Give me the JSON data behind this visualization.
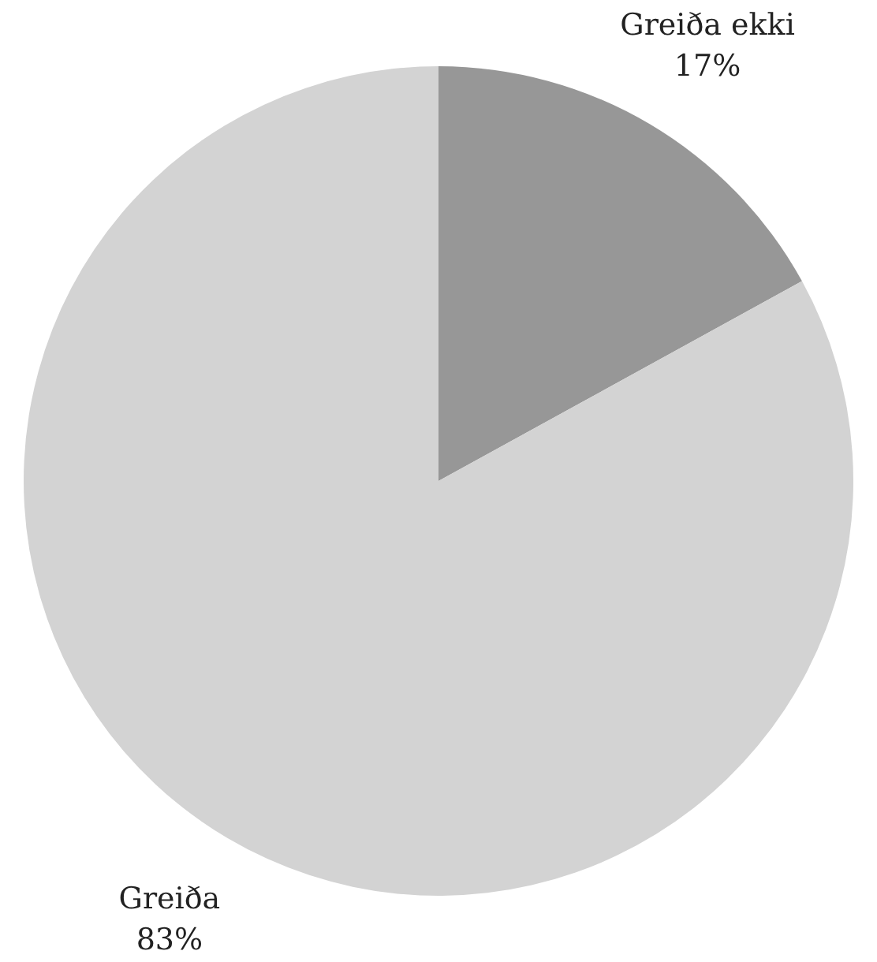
{
  "chart_data": {
    "type": "pie",
    "categories": [
      "Greiða ekki",
      "Greiða"
    ],
    "values": [
      17,
      83
    ],
    "value_labels": [
      "17%",
      "83%"
    ],
    "colors": [
      "#979797",
      "#d3d3d3"
    ]
  }
}
